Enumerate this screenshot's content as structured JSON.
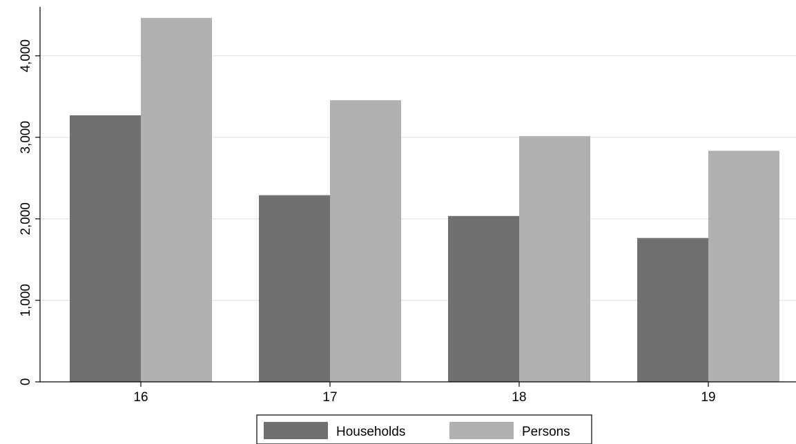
{
  "chart_data": {
    "type": "bar",
    "title": "",
    "xlabel": "",
    "ylabel": "",
    "categories": [
      "16",
      "17",
      "18",
      "19"
    ],
    "series": [
      {
        "name": "Households",
        "values": [
          3270,
          2290,
          2035,
          1765
        ],
        "color": "#707070"
      },
      {
        "name": "Persons",
        "values": [
          4465,
          3455,
          3015,
          2835
        ],
        "color": "#b0b0b0"
      }
    ],
    "ylim": [
      0,
      4600
    ],
    "yticks": [
      0,
      1000,
      2000,
      3000,
      4000
    ],
    "ytick_labels": [
      "0",
      "1,000",
      "2,000",
      "3,000",
      "4,000"
    ],
    "grid": true,
    "legend_position": "bottom-center"
  }
}
